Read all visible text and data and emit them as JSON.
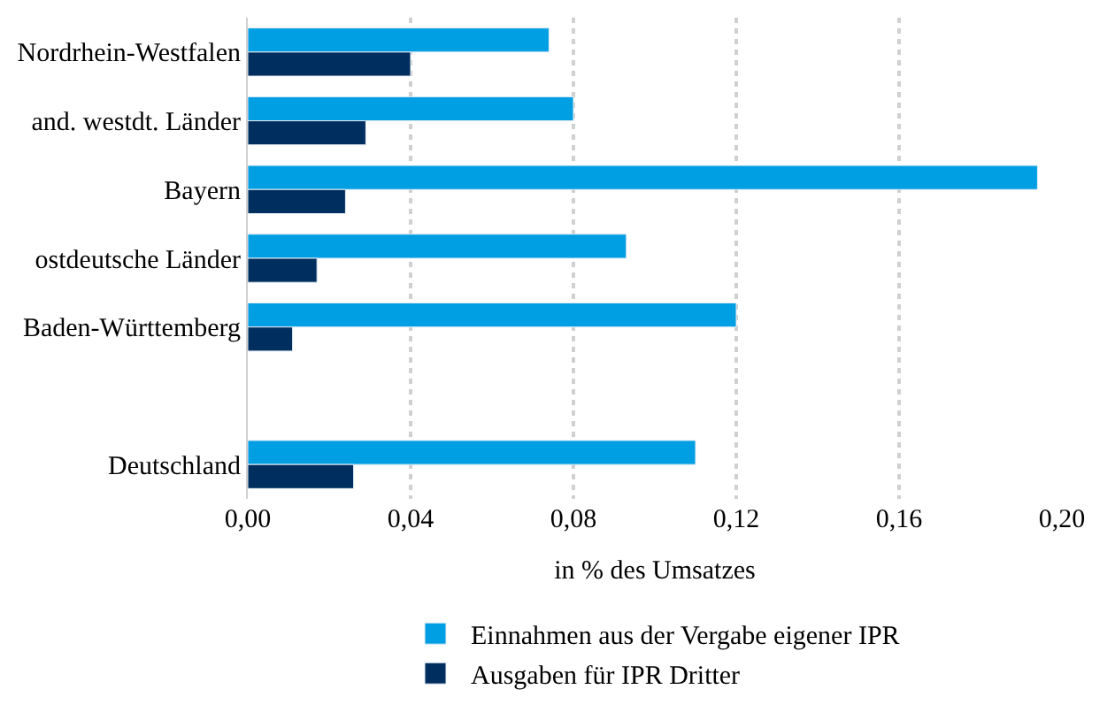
{
  "chart_data": {
    "type": "bar",
    "orientation": "horizontal",
    "categories": [
      "Nordrhein-Westfalen",
      "and. westdt. Länder",
      "Bayern",
      "ostdeutsche Länder",
      "Baden-Württemberg",
      null,
      "Deutschland"
    ],
    "series": [
      {
        "name": "Einnahmen aus der Vergabe eigener IPR",
        "color": "#009fe3",
        "values": [
          0.074,
          0.08,
          0.194,
          0.093,
          0.12,
          null,
          0.11
        ]
      },
      {
        "name": "Ausgaben für IPR Dritter",
        "color": "#002f5f",
        "values": [
          0.04,
          0.029,
          0.024,
          0.017,
          0.011,
          null,
          0.026
        ]
      }
    ],
    "xlabel": "in % des Umsatzes",
    "xlim": [
      0,
      0.2
    ],
    "xticks": [
      {
        "value": 0,
        "label": "0,00"
      },
      {
        "value": 0.04,
        "label": "0,04"
      },
      {
        "value": 0.08,
        "label": "0,08"
      },
      {
        "value": 0.12,
        "label": "0,12"
      },
      {
        "value": 0.16,
        "label": "0,16"
      },
      {
        "value": 0.2,
        "label": "0,20"
      }
    ],
    "grid": "x",
    "legend": "bottom"
  }
}
